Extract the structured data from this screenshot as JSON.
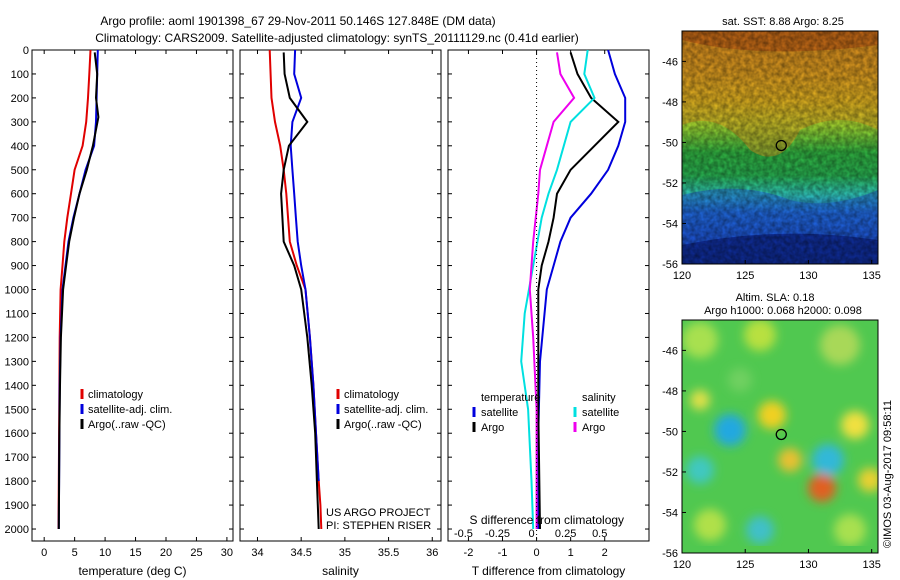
{
  "header": {
    "line1": "Argo profile: aoml 1901398_67 29-Nov-2011 50.146S 127.848E (DM data)",
    "line2": "Climatology: CARS2009. Satellite-adjusted climatology: synTS_20111129.nc (0.41d earlier)"
  },
  "credit": {
    "project": "US ARGO PROJECT",
    "pi": "PI: STEPHEN RISER",
    "stamp": "©IMOS 03-Aug-2017 09:58:11"
  },
  "colors": {
    "climatology": "#e00000",
    "satellite": "#0000dd",
    "argo": "#000000",
    "cyan": "#00e0e0",
    "magenta": "#ee00ee"
  },
  "chart_data": [
    {
      "type": "line",
      "xlabel": "temperature (deg C)",
      "ylabel": "",
      "xlim": [
        -2,
        31
      ],
      "ylim": [
        2050,
        0
      ],
      "xticks": [
        0,
        5,
        10,
        15,
        20,
        25,
        30
      ],
      "yticks": [
        0,
        100,
        200,
        300,
        400,
        500,
        600,
        700,
        800,
        900,
        1000,
        1100,
        1200,
        1300,
        1400,
        1500,
        1600,
        1700,
        1800,
        1900,
        2000
      ],
      "legend": [
        "climatology",
        "satellite-adj. clim.",
        "Argo(..raw -QC)"
      ],
      "series": [
        {
          "name": "climatology",
          "color": "#e00000",
          "x": [
            7.6,
            7.4,
            7.2,
            6.9,
            6.3,
            5.0,
            4.4,
            3.8,
            3.3,
            3.0,
            2.7,
            2.55,
            2.5,
            2.45,
            2.4,
            2.35
          ],
          "y": [
            0,
            100,
            200,
            300,
            400,
            500,
            600,
            700,
            800,
            900,
            1000,
            1200,
            1400,
            1600,
            1800,
            2000
          ]
        },
        {
          "name": "satellite-adj. clim.",
          "color": "#0000dd",
          "x": [
            8.8,
            8.7,
            8.6,
            8.5,
            8.2,
            6.8,
            5.8,
            4.8,
            4.0,
            3.5,
            3.0,
            2.7,
            2.55,
            2.5,
            2.45,
            2.4
          ],
          "y": [
            0,
            100,
            200,
            300,
            400,
            500,
            600,
            700,
            800,
            900,
            1000,
            1200,
            1400,
            1600,
            1800,
            2000
          ]
        },
        {
          "name": "Argo(..raw -QC)",
          "color": "#000000",
          "x": [
            8.3,
            8.7,
            8.5,
            8.9,
            8.0,
            7.0,
            5.8,
            4.9,
            4.1,
            3.6,
            3.1,
            2.75,
            2.6,
            2.5,
            2.45,
            2.4
          ],
          "y": [
            10,
            100,
            200,
            280,
            400,
            500,
            600,
            700,
            800,
            900,
            1000,
            1200,
            1400,
            1600,
            1800,
            2000
          ]
        }
      ]
    },
    {
      "type": "line",
      "xlabel": "salinity",
      "ylabel": "",
      "xlim": [
        33.8,
        36.1
      ],
      "ylim": [
        2050,
        0
      ],
      "xticks": [
        34,
        34.5,
        35,
        35.5,
        36
      ],
      "legend": [
        "climatology",
        "satellite-adj. clim.",
        "Argo(..raw -QC)"
      ],
      "series": [
        {
          "name": "climatology",
          "color": "#e00000",
          "x": [
            34.14,
            34.15,
            34.16,
            34.2,
            34.26,
            34.3,
            34.33,
            34.37,
            34.45,
            34.55,
            34.6,
            34.64,
            34.67,
            34.7,
            34.72,
            34.73
          ],
          "y": [
            0,
            100,
            200,
            300,
            400,
            500,
            600,
            800,
            900,
            1000,
            1200,
            1400,
            1600,
            1800,
            1900,
            2000
          ]
        },
        {
          "name": "satellite-adj. clim.",
          "color": "#0000dd",
          "x": [
            34.43,
            34.42,
            34.5,
            34.4,
            34.38,
            34.4,
            34.42,
            34.44,
            34.46,
            34.5,
            34.55,
            34.6,
            34.64,
            34.67,
            34.7
          ],
          "y": [
            0,
            100,
            200,
            300,
            400,
            500,
            600,
            700,
            800,
            900,
            1000,
            1200,
            1400,
            1600,
            1800
          ]
        },
        {
          "name": "Argo(..raw -QC)",
          "color": "#000000",
          "x": [
            34.3,
            34.31,
            34.37,
            34.57,
            34.36,
            34.3,
            34.27,
            34.3,
            34.42,
            34.5,
            34.57,
            34.62,
            34.66,
            34.68,
            34.7
          ],
          "y": [
            10,
            100,
            200,
            300,
            400,
            500,
            600,
            800,
            900,
            1000,
            1200,
            1400,
            1600,
            1800,
            2000
          ]
        }
      ]
    },
    {
      "type": "line",
      "xlabel": "T difference from climatology",
      "xlabel_top": "S difference from climatology",
      "ylabel": "",
      "xlim": [
        -2.6,
        3.3
      ],
      "ylim": [
        2050,
        0
      ],
      "xticks": [
        -2,
        -1,
        0,
        1,
        2
      ],
      "xticks_top": [
        "-0.5",
        "-0.25",
        "0",
        "0.25",
        "0.5"
      ],
      "legend_temperature": {
        "header": "temperature",
        "items": [
          "satellite",
          "Argo"
        ]
      },
      "legend_salinity": {
        "header": "salinity",
        "items": [
          "satellite",
          "Argo"
        ]
      },
      "series": [
        {
          "name": "temperature satellite",
          "color": "#0000dd",
          "x": [
            2.1,
            2.3,
            2.6,
            2.6,
            2.4,
            2.1,
            1.6,
            1.0,
            0.7,
            0.5,
            0.3,
            0.1,
            0.05,
            0.05
          ],
          "y": [
            0,
            100,
            200,
            300,
            400,
            500,
            600,
            700,
            800,
            900,
            1000,
            1300,
            1600,
            2000
          ]
        },
        {
          "name": "temperature Argo",
          "color": "#000000",
          "x": [
            1.0,
            1.2,
            1.6,
            2.4,
            1.7,
            1.0,
            0.6,
            0.5,
            0.35,
            0.15,
            0.05,
            0.05,
            0.1
          ],
          "y": [
            10,
            100,
            200,
            300,
            400,
            500,
            600,
            700,
            800,
            900,
            1000,
            1500,
            2000
          ]
        },
        {
          "name": "salinity satellite",
          "color": "#00e0e0",
          "x": [
            1.5,
            1.4,
            1.7,
            1.0,
            0.8,
            0.6,
            0.35,
            0.15,
            -0.1,
            -0.35,
            -0.45,
            -0.25,
            -0.15,
            -0.1
          ],
          "y": [
            0,
            100,
            200,
            300,
            400,
            500,
            600,
            700,
            900,
            1100,
            1300,
            1500,
            1800,
            2000
          ]
        },
        {
          "name": "salinity Argo",
          "color": "#ee00ee",
          "x": [
            0.6,
            0.7,
            1.1,
            0.5,
            0.3,
            0.1,
            0.05,
            -0.1,
            -0.2,
            -0.1,
            0.0,
            0.0
          ],
          "y": [
            10,
            100,
            200,
            300,
            400,
            500,
            600,
            800,
            1000,
            1200,
            1500,
            2000
          ]
        }
      ]
    },
    {
      "type": "heatmap",
      "title": "sat. SST: 8.88 Argo: 8.25",
      "xlim": [
        120,
        135.5
      ],
      "ylim": [
        -56,
        -44.5
      ],
      "xticks": [
        120,
        125,
        130,
        135
      ],
      "yticks": [
        -46,
        -48,
        -50,
        -52,
        -54,
        -56
      ],
      "marker": {
        "x": 127.85,
        "y": -50.15
      }
    },
    {
      "type": "heatmap",
      "title": "Altim. SLA: 0.18",
      "subtitle": "Argo h1000: 0.068 h2000: 0.098",
      "xlim": [
        120,
        135.5
      ],
      "ylim": [
        -56,
        -44.5
      ],
      "xticks": [
        120,
        125,
        130,
        135
      ],
      "yticks": [
        -46,
        -48,
        -50,
        -52,
        -54,
        -56
      ],
      "marker": {
        "x": 127.85,
        "y": -50.15
      }
    }
  ]
}
